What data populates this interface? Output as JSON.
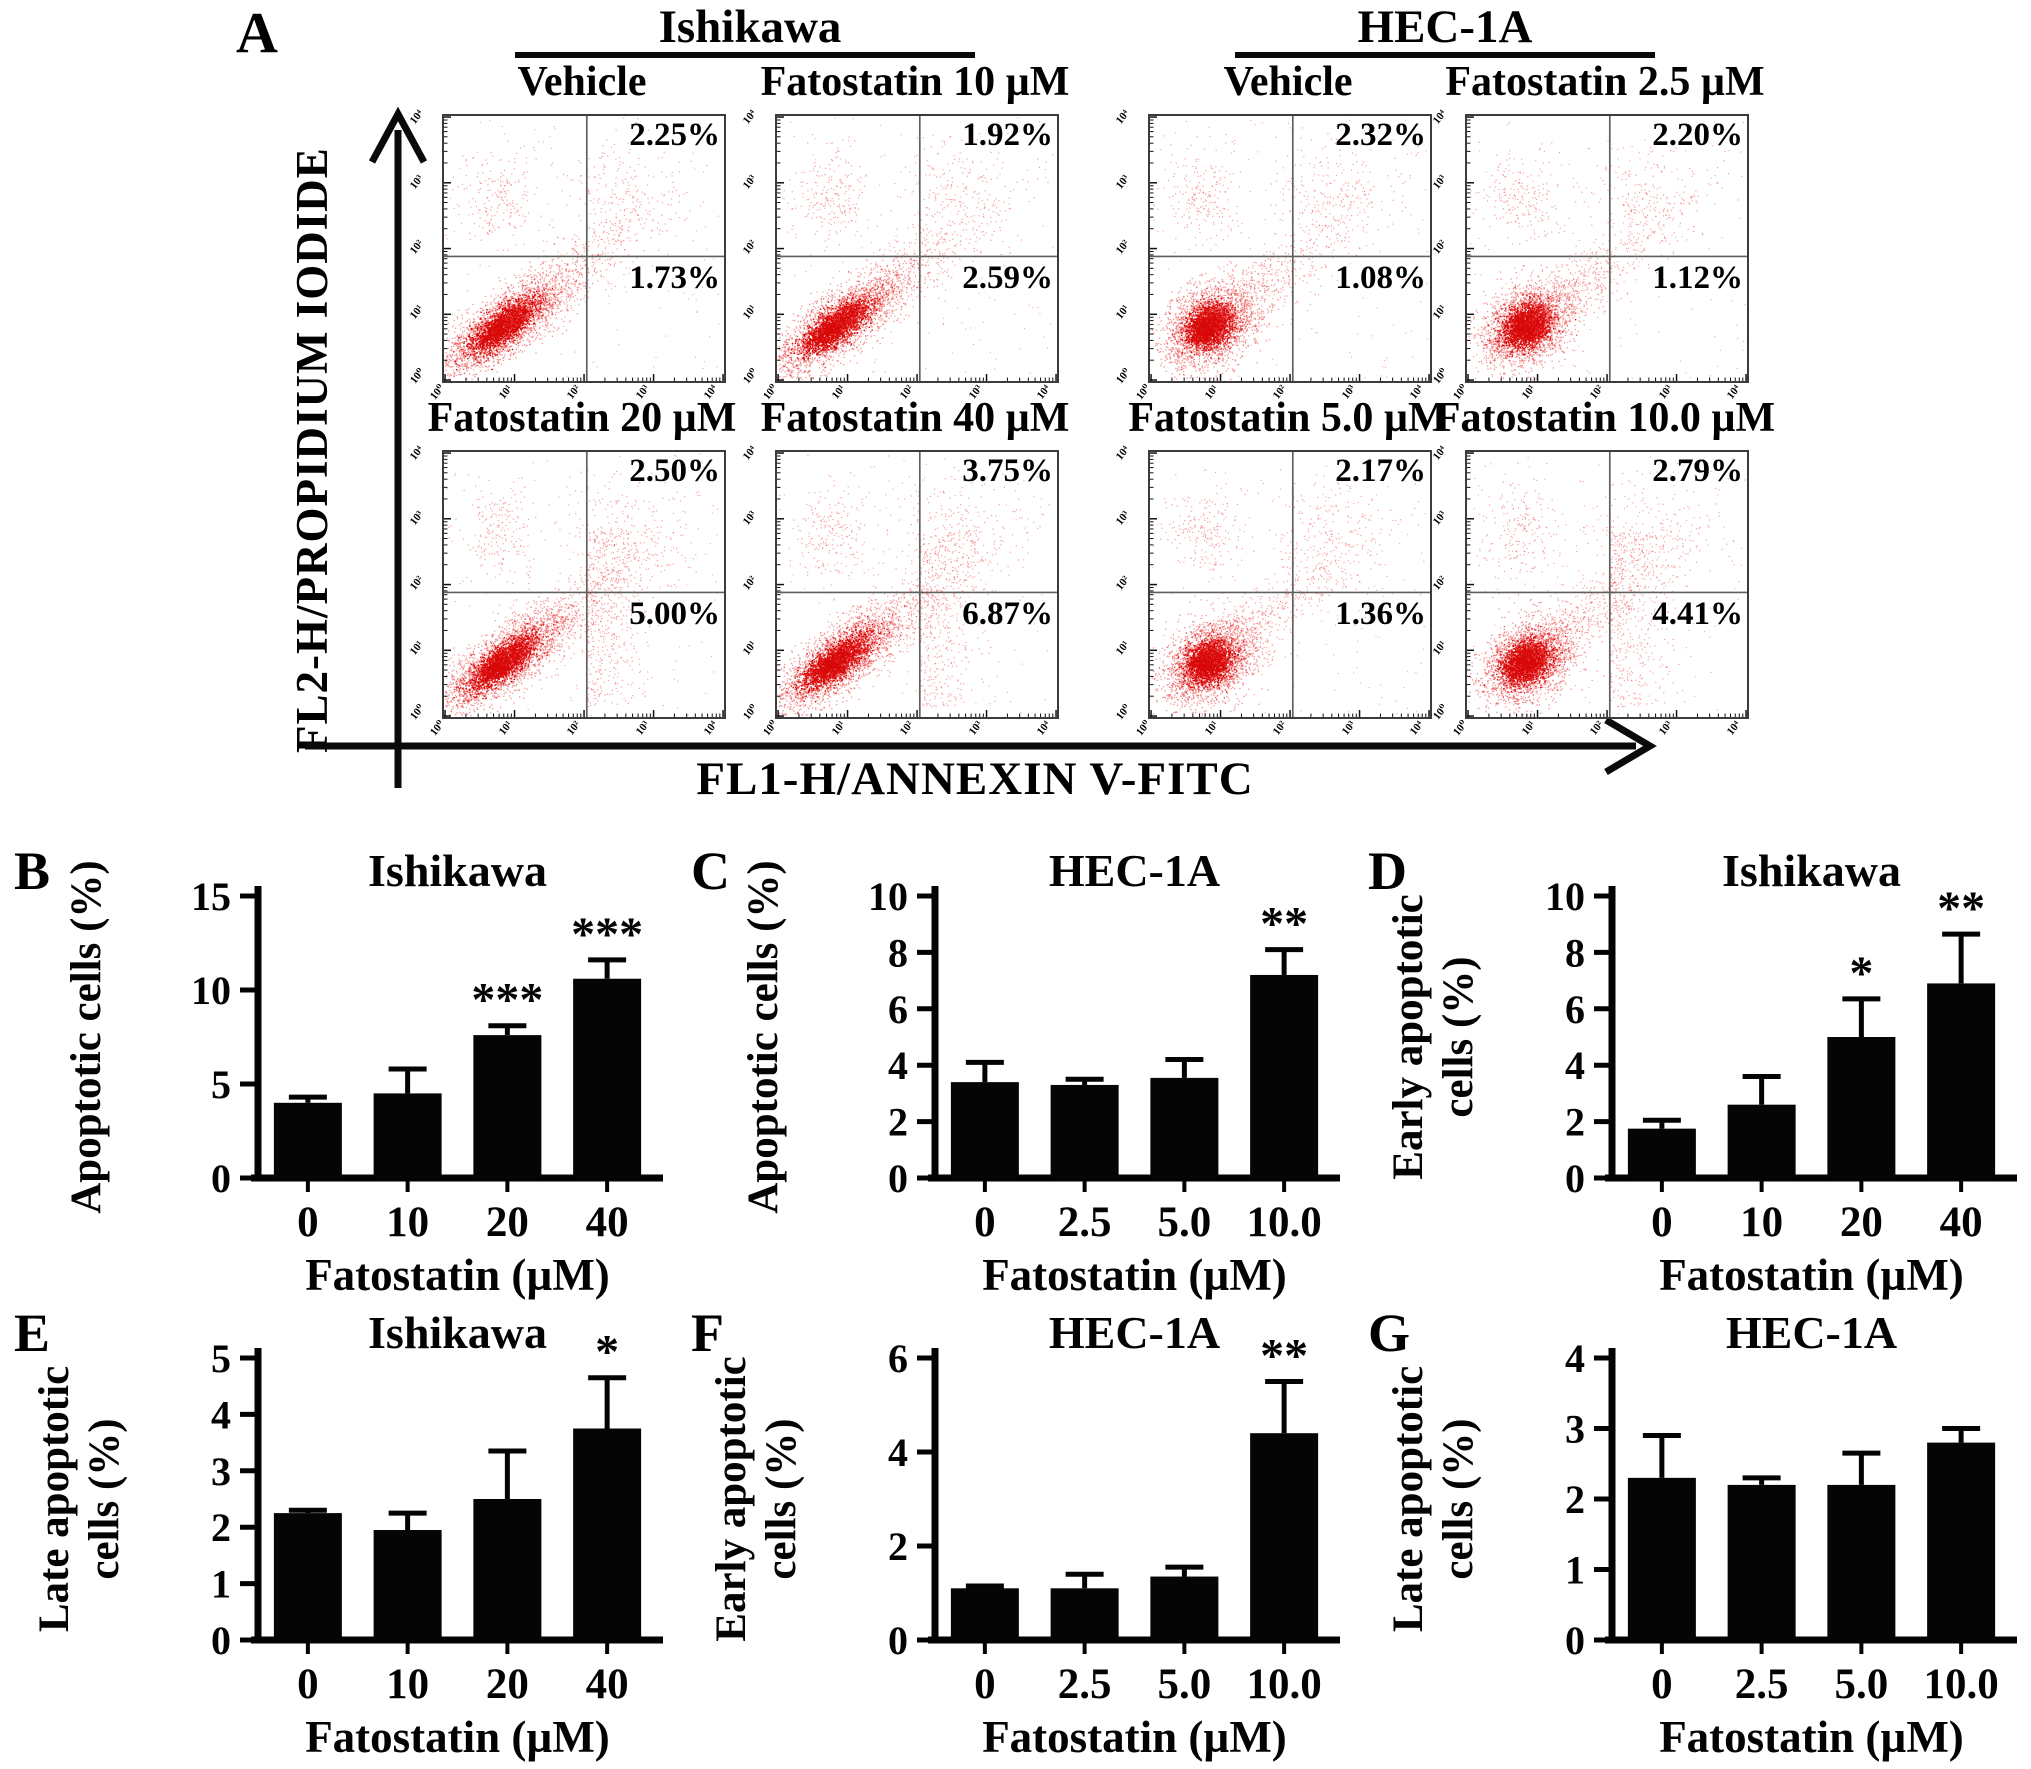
{
  "figure": {
    "background": "#ffffff",
    "text_color": "#000000",
    "dot_color": "#e21717",
    "dot_color_core": "#d90909",
    "quadrant_line_color": "#606060",
    "axis_color": "#000000"
  },
  "panel_a": {
    "label": "A",
    "y_axis_label": "FL2-H/PROPIDIUM IODIDE",
    "x_axis_label": "FL1-H/ANNEXIN V-FITC",
    "y_axis_arrow": "up-arrow-icon",
    "x_axis_arrow": "right-arrow-icon",
    "groups": [
      {
        "name": "Ishikawa"
      },
      {
        "name": "HEC-1A"
      }
    ],
    "log_ticks": [
      "10⁰",
      "10¹",
      "10²",
      "10³",
      "10⁴"
    ],
    "plots": [
      {
        "group": "Ishikawa",
        "title": "Vehicle",
        "upper_right_pct": "2.25%",
        "lower_right_pct": "1.73%",
        "cluster_style": "elongated",
        "extra_right_scatter": false
      },
      {
        "group": "Ishikawa",
        "title": "Fatostatin 10 µM",
        "upper_right_pct": "1.92%",
        "lower_right_pct": "2.59%",
        "cluster_style": "elongated",
        "extra_right_scatter": false
      },
      {
        "group": "HEC-1A",
        "title": "Vehicle",
        "upper_right_pct": "2.32%",
        "lower_right_pct": "1.08%",
        "cluster_style": "round",
        "extra_right_scatter": false
      },
      {
        "group": "HEC-1A",
        "title": "Fatostatin 2.5 µM",
        "upper_right_pct": "2.20%",
        "lower_right_pct": "1.12%",
        "cluster_style": "round",
        "extra_right_scatter": false
      },
      {
        "group": "Ishikawa",
        "title": "Fatostatin 20 µM",
        "upper_right_pct": "2.50%",
        "lower_right_pct": "5.00%",
        "cluster_style": "elongated",
        "extra_right_scatter": true
      },
      {
        "group": "Ishikawa",
        "title": "Fatostatin 40 µM",
        "upper_right_pct": "3.75%",
        "lower_right_pct": "6.87%",
        "cluster_style": "elongated",
        "extra_right_scatter": true
      },
      {
        "group": "HEC-1A",
        "title": "Fatostatin 5.0 µM",
        "upper_right_pct": "2.17%",
        "lower_right_pct": "1.36%",
        "cluster_style": "round",
        "extra_right_scatter": false
      },
      {
        "group": "HEC-1A",
        "title": "Fatostatin 10.0 µM",
        "upper_right_pct": "2.79%",
        "lower_right_pct": "4.41%",
        "cluster_style": "round",
        "extra_right_scatter": true
      }
    ]
  },
  "chart_data": [
    {
      "type": "bar",
      "panel_letter": "B",
      "title": "Ishikawa",
      "ylabel_lines": [
        "Apoptotic cells (%)"
      ],
      "xlabel": "Fatostatin (µM)",
      "categories": [
        "0",
        "10",
        "20",
        "40"
      ],
      "values": [
        4.0,
        4.5,
        7.6,
        10.6
      ],
      "errors": [
        0.3,
        1.3,
        0.5,
        1.0
      ],
      "sig": [
        "",
        "",
        "***",
        "***"
      ],
      "ylim": [
        0,
        15
      ],
      "yticks": [
        0,
        5,
        10,
        15
      ]
    },
    {
      "type": "bar",
      "panel_letter": "C",
      "title": "HEC-1A",
      "ylabel_lines": [
        "Apoptotic cells (%)"
      ],
      "xlabel": "Fatostatin (µM)",
      "categories": [
        "0",
        "2.5",
        "5.0",
        "10.0"
      ],
      "values": [
        3.4,
        3.3,
        3.55,
        7.2
      ],
      "errors": [
        0.7,
        0.2,
        0.65,
        0.9
      ],
      "sig": [
        "",
        "",
        "",
        "**"
      ],
      "ylim": [
        0,
        10
      ],
      "yticks": [
        0,
        2,
        4,
        6,
        8,
        10
      ]
    },
    {
      "type": "bar",
      "panel_letter": "D",
      "title": "Ishikawa",
      "ylabel_lines": [
        "Early apoptotic",
        "cells (%)"
      ],
      "xlabel": "Fatostatin (µM)",
      "categories": [
        "0",
        "10",
        "20",
        "40"
      ],
      "values": [
        1.75,
        2.6,
        5.0,
        6.9
      ],
      "errors": [
        0.3,
        1.0,
        1.35,
        1.75
      ],
      "sig": [
        "",
        "",
        "*",
        "**"
      ],
      "ylim": [
        0,
        10
      ],
      "yticks": [
        0,
        2,
        4,
        6,
        8,
        10
      ]
    },
    {
      "type": "bar",
      "panel_letter": "E",
      "title": "Ishikawa",
      "ylabel_lines": [
        "Late apoptotic",
        "cells (%)"
      ],
      "xlabel": "Fatostatin (µM)",
      "categories": [
        "0",
        "10",
        "20",
        "40"
      ],
      "values": [
        2.25,
        1.95,
        2.5,
        3.75
      ],
      "errors": [
        0.05,
        0.3,
        0.85,
        0.9
      ],
      "sig": [
        "",
        "",
        "",
        "*"
      ],
      "ylim": [
        0,
        5
      ],
      "yticks": [
        0,
        1,
        2,
        3,
        4,
        5
      ]
    },
    {
      "type": "bar",
      "panel_letter": "F",
      "title": "HEC-1A",
      "ylabel_lines": [
        "Early apoptotic",
        "cells (%)"
      ],
      "xlabel": "Fatostatin (µM)",
      "categories": [
        "0",
        "2.5",
        "5.0",
        "10.0"
      ],
      "values": [
        1.1,
        1.1,
        1.35,
        4.4
      ],
      "errors": [
        0.05,
        0.3,
        0.2,
        1.1
      ],
      "sig": [
        "",
        "",
        "",
        "**"
      ],
      "ylim": [
        0,
        6
      ],
      "yticks": [
        0,
        2,
        4,
        6
      ]
    },
    {
      "type": "bar",
      "panel_letter": "G",
      "title": "HEC-1A",
      "ylabel_lines": [
        "Late apoptotic",
        "cells (%)"
      ],
      "xlabel": "Fatostatin (µM)",
      "categories": [
        "0",
        "2.5",
        "5.0",
        "10.0"
      ],
      "values": [
        2.3,
        2.2,
        2.2,
        2.8
      ],
      "errors": [
        0.6,
        0.1,
        0.45,
        0.2
      ],
      "sig": [
        "",
        "",
        "",
        ""
      ],
      "ylim": [
        0,
        4
      ],
      "yticks": [
        0,
        1,
        2,
        3,
        4
      ]
    }
  ]
}
